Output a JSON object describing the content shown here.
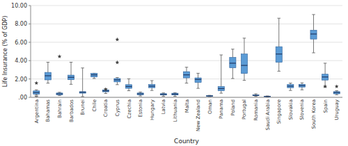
{
  "chart_data": {
    "type": "box",
    "xlabel": "Country",
    "ylabel": "Life Insurance (% of GDP)",
    "ylim": [
      0,
      10.0
    ],
    "yticks": [
      {
        "value": 0.0,
        "label": ".00"
      },
      {
        "value": 2.0,
        "label": "2.00"
      },
      {
        "value": 4.0,
        "label": "4.00"
      },
      {
        "value": 6.0,
        "label": "6.00"
      },
      {
        "value": 8.0,
        "label": "8.00"
      },
      {
        "value": 10.0,
        "label": "10.00"
      }
    ],
    "grid": true,
    "color": "#5B9BD5",
    "categories": [
      "Argentina",
      "Bahamas",
      "Bahrain",
      "Barbados",
      "Brunei",
      "Chile",
      "Croatia",
      "Cyprus",
      "Czechia",
      "Estonia",
      "Hungary",
      "Latvia",
      "Lithuania",
      "Malta",
      "New Zealand",
      "Oman",
      "Panama",
      "Poland",
      "Portugal",
      "Romania",
      "Saudi Arabia",
      "Singapore",
      "Slovakia",
      "Slovenia",
      "South Korea",
      "Spain",
      "Uruguay"
    ],
    "boxes": [
      {
        "q1": 0.35,
        "median": 0.52,
        "q3": 0.7,
        "whislo": 0.1,
        "whishi": 0.82,
        "fliers_lo": [
          0.18
        ],
        "fliers_hi": [
          1.55
        ]
      },
      {
        "q1": 1.9,
        "median": 2.35,
        "q3": 2.72,
        "whislo": 1.55,
        "whishi": 3.82,
        "fliers_lo": [],
        "fliers_hi": []
      },
      {
        "q1": 0.28,
        "median": 0.38,
        "q3": 0.47,
        "whislo": 0.2,
        "whishi": 0.55,
        "fliers_lo": [],
        "fliers_hi": [
          4.45
        ]
      },
      {
        "q1": 1.92,
        "median": 2.18,
        "q3": 2.42,
        "whislo": 1.42,
        "whishi": 3.82,
        "fliers_lo": [],
        "fliers_hi": []
      },
      {
        "q1": 0.45,
        "median": 0.55,
        "q3": 0.62,
        "whislo": 0.08,
        "whishi": 3.2,
        "fliers_lo": [],
        "fliers_hi": []
      },
      {
        "q1": 2.22,
        "median": 2.45,
        "q3": 2.6,
        "whislo": 2.05,
        "whishi": 2.62,
        "fliers_lo": [],
        "fliers_hi": []
      },
      {
        "q1": 0.6,
        "median": 0.7,
        "q3": 0.82,
        "whislo": 0.42,
        "whishi": 0.9,
        "fliers_lo": [],
        "fliers_hi": [
          0.88
        ]
      },
      {
        "q1": 1.68,
        "median": 1.9,
        "q3": 2.05,
        "whislo": 1.38,
        "whishi": 2.15,
        "fliers_lo": [],
        "fliers_hi": [
          6.3,
          3.8
        ]
      },
      {
        "q1": 0.98,
        "median": 1.18,
        "q3": 1.38,
        "whislo": 0.72,
        "whishi": 2.02,
        "fliers_lo": [],
        "fliers_hi": []
      },
      {
        "q1": 0.28,
        "median": 0.38,
        "q3": 0.47,
        "whislo": 0.15,
        "whishi": 0.58,
        "fliers_lo": [],
        "fliers_hi": []
      },
      {
        "q1": 1.05,
        "median": 1.22,
        "q3": 1.4,
        "whislo": 0.75,
        "whishi": 1.82,
        "fliers_lo": [],
        "fliers_hi": []
      },
      {
        "q1": 0.25,
        "median": 0.32,
        "q3": 0.4,
        "whislo": 0.12,
        "whishi": 0.48,
        "fliers_lo": [],
        "fliers_hi": []
      },
      {
        "q1": 0.25,
        "median": 0.35,
        "q3": 0.45,
        "whislo": 0.12,
        "whishi": 0.5,
        "fliers_lo": [],
        "fliers_hi": []
      },
      {
        "q1": 2.12,
        "median": 2.45,
        "q3": 2.8,
        "whislo": 1.55,
        "whishi": 3.28,
        "fliers_lo": [],
        "fliers_hi": []
      },
      {
        "q1": 1.62,
        "median": 1.95,
        "q3": 2.12,
        "whislo": 0.98,
        "whishi": 2.62,
        "fliers_lo": [],
        "fliers_hi": []
      },
      {
        "q1": 0.1,
        "median": 0.15,
        "q3": 0.18,
        "whislo": 0.08,
        "whishi": 0.22,
        "fliers_lo": [],
        "fliers_hi": []
      },
      {
        "q1": 0.72,
        "median": 0.95,
        "q3": 1.18,
        "whislo": 0.45,
        "whishi": 4.62,
        "fliers_lo": [],
        "fliers_hi": []
      },
      {
        "q1": 3.22,
        "median": 3.72,
        "q3": 4.35,
        "whislo": 2.05,
        "whishi": 5.25,
        "fliers_lo": [],
        "fliers_hi": []
      },
      {
        "q1": 2.6,
        "median": 3.48,
        "q3": 4.72,
        "whislo": 1.85,
        "whishi": 6.45,
        "fliers_lo": [],
        "fliers_hi": []
      },
      {
        "q1": 0.18,
        "median": 0.22,
        "q3": 0.28,
        "whislo": 0.1,
        "whishi": 0.38,
        "fliers_lo": [],
        "fliers_hi": []
      },
      {
        "q1": 0.08,
        "median": 0.1,
        "q3": 0.12,
        "whislo": 0.05,
        "whishi": 0.15,
        "fliers_lo": [],
        "fliers_hi": []
      },
      {
        "q1": 3.82,
        "median": 4.72,
        "q3": 5.52,
        "whislo": 2.85,
        "whishi": 8.62,
        "fliers_lo": [],
        "fliers_hi": []
      },
      {
        "q1": 1.05,
        "median": 1.22,
        "q3": 1.4,
        "whislo": 0.75,
        "whishi": 1.55,
        "fliers_lo": [],
        "fliers_hi": []
      },
      {
        "q1": 1.12,
        "median": 1.28,
        "q3": 1.42,
        "whislo": 0.82,
        "whishi": 1.58,
        "fliers_lo": [],
        "fliers_hi": []
      },
      {
        "q1": 6.35,
        "median": 6.9,
        "q3": 7.32,
        "whislo": 4.85,
        "whishi": 9.02,
        "fliers_lo": [],
        "fliers_hi": []
      },
      {
        "q1": 1.88,
        "median": 2.22,
        "q3": 2.52,
        "whislo": 1.12,
        "whishi": 3.72,
        "fliers_lo": [],
        "fliers_hi": [
          1.18
        ]
      },
      {
        "q1": 0.38,
        "median": 0.52,
        "q3": 0.62,
        "whislo": 0.28,
        "whishi": 0.72,
        "fliers_lo": [],
        "fliers_hi": [
          1.18
        ]
      }
    ]
  }
}
